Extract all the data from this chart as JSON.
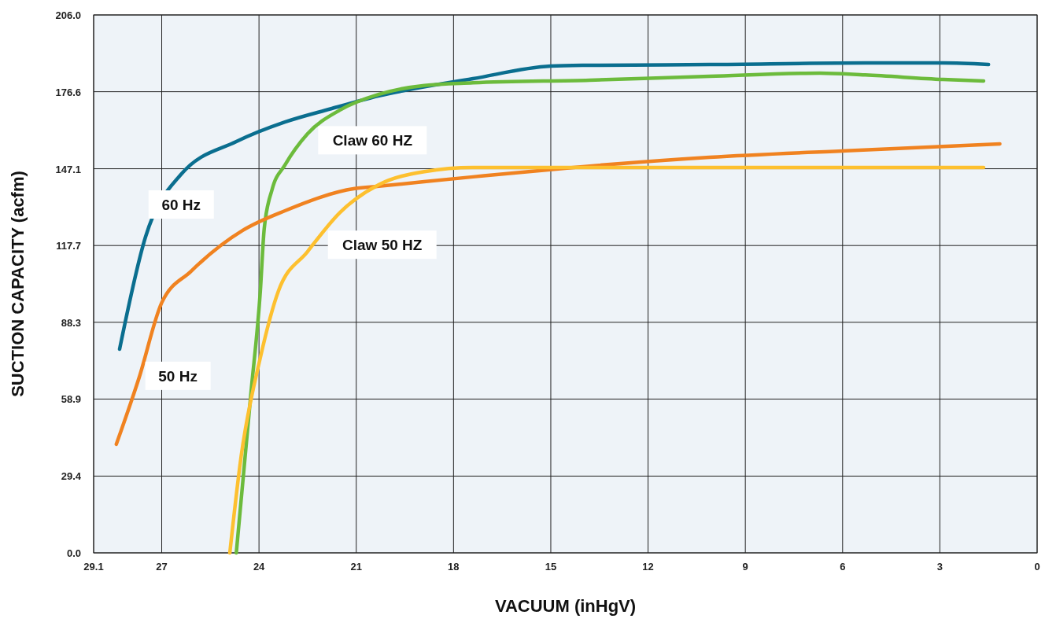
{
  "chart_data": {
    "type": "line",
    "xlabel": "VACUUM (inHgV)",
    "ylabel": "SUCTION CAPACITY (acfm)",
    "xlim": [
      29.1,
      0
    ],
    "xticks": [
      29.1,
      27,
      24,
      21,
      18,
      15,
      12,
      9,
      6,
      3,
      0
    ],
    "ylim": [
      0,
      206
    ],
    "yticks": [
      {
        "value": 0,
        "label": "0.0"
      },
      29.4,
      58.9,
      88.3,
      117.7,
      147.1,
      176.6,
      {
        "value": 206,
        "label": "206.0"
      }
    ],
    "grid": true,
    "line_style": "solid",
    "marker": "none",
    "series": [
      {
        "name": "60 Hz",
        "color": "#0a6e8f",
        "x": [
          28.3,
          27.5,
          26.4,
          24.7,
          23.2,
          21.8,
          20.3,
          17.4,
          15.0,
          14.0,
          10.1,
          5.3,
          2.9,
          1.5
        ],
        "values": [
          78,
          121,
          145,
          157.5,
          165,
          170,
          175,
          181.6,
          186.4,
          186.7,
          187,
          187.6,
          187.6,
          187
        ]
      },
      {
        "name": "Claw 60 HZ",
        "color": "#6cbb3c",
        "x": [
          24.7,
          24.25,
          23.96,
          23.84,
          23.6,
          23.2,
          22.5,
          21.5,
          20.3,
          18.9,
          17.4,
          13.8,
          10.1,
          6.7,
          5.3,
          2.9,
          1.65
        ],
        "values": [
          0,
          61,
          100,
          124,
          139,
          148.5,
          160.5,
          169.6,
          175.6,
          179,
          180,
          181,
          182.5,
          183.7,
          183,
          181.3,
          180.7
        ]
      },
      {
        "name": "50 Hz",
        "color": "#f08220",
        "x": [
          28.4,
          27.7,
          27.0,
          26.1,
          24.5,
          23.2,
          21.05,
          20.3,
          17.4,
          14.3,
          10.1,
          5.9,
          1.15
        ],
        "values": [
          41.6,
          67,
          95.8,
          107.8,
          123.5,
          131,
          139.5,
          140.4,
          144,
          147.6,
          151.5,
          154,
          156.6
        ]
      },
      {
        "name": "Claw 50 HZ",
        "color": "#fdc02f",
        "x": [
          24.9,
          24.55,
          23.96,
          23.4,
          22.5,
          21.5,
          20.3,
          18.9,
          17.4,
          1.65
        ],
        "values": [
          0,
          37,
          74.7,
          100.3,
          115.4,
          130.4,
          141,
          146,
          147.6,
          147.6
        ]
      }
    ]
  }
}
